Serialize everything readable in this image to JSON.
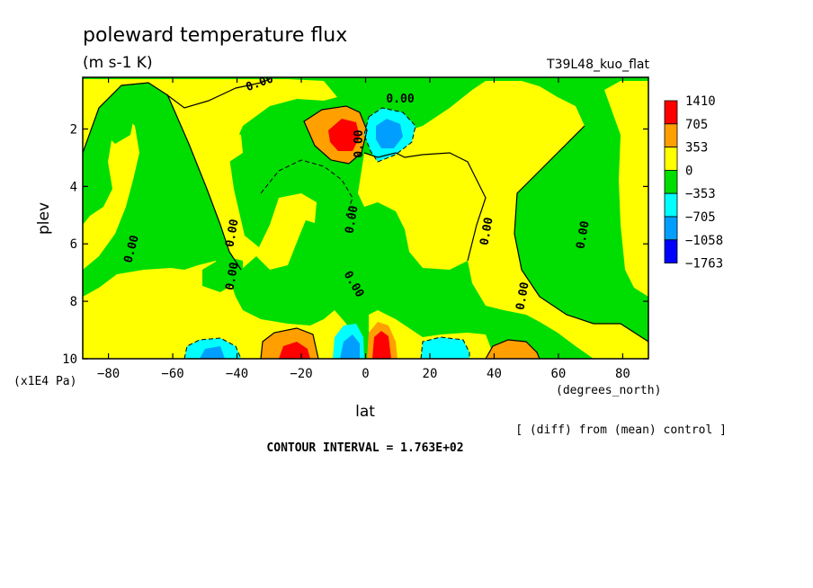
{
  "chart_data": {
    "type": "heatmap",
    "title": "poleward temperature flux",
    "units": "(m s-1 K)",
    "run_label": "T39L48_kuo_flat",
    "xlabel": "lat",
    "x_units": "(degrees_north)",
    "ylabel": "plev",
    "y_units": "(x1E4 Pa)",
    "comparison_note": "[ (diff) from (mean) control ]",
    "contour_interval_text": "CONTOUR INTERVAL = 1.763E+02",
    "xlim": [
      -88,
      88
    ],
    "ylim": [
      0.2,
      10
    ],
    "y_inverted": true,
    "x_ticks": [
      "-80",
      "-60",
      "-40",
      "-20",
      "0",
      "20",
      "40",
      "60",
      "80"
    ],
    "y_ticks": [
      "2",
      "4",
      "6",
      "8",
      "10"
    ],
    "contour_labels": [
      "0.00",
      "0.00",
      "0.00",
      "0.00",
      "0.00",
      "0.00",
      "0.00",
      "0.00",
      "0.00",
      "0.00",
      "0.00"
    ],
    "legend": {
      "placement": "right",
      "levels": [
        "1410",
        "705",
        "353",
        "0",
        "-353",
        "-705",
        "-1058",
        "-1763"
      ],
      "colors": [
        "#ff0000",
        "#ff9f00",
        "#ffff00",
        "#00dd00",
        "#00ffff",
        "#009fff",
        "#0000ff"
      ]
    },
    "fill_colors": {
      "positive_low": "#ffff00",
      "negative_low": "#00dd00",
      "positive_mid": "#ff9f00",
      "negative_mid": "#00ffff",
      "positive_high": "#ff0000",
      "negative_high": "#009fff",
      "negative_max": "#0000ff"
    }
  }
}
